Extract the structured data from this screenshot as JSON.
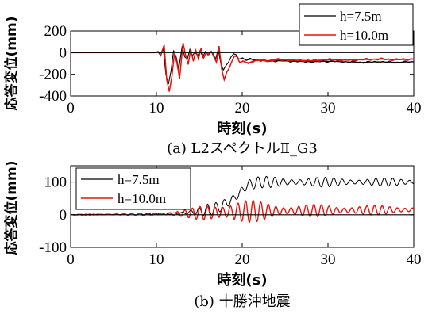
{
  "chart_data": [
    {
      "type": "line",
      "panel_caption": "(a)  L2スペクトルⅡ_G3",
      "xlabel": "時刻(s)",
      "ylabel": "応答変位(mm)",
      "xlim": [
        0,
        40
      ],
      "ylim": [
        -400,
        200
      ],
      "x_ticks": [
        "0",
        "10",
        "20",
        "30",
        "40"
      ],
      "y_ticks": [
        "200",
        "0",
        "-200",
        "-400"
      ],
      "legend_position": "top-right",
      "grid": false,
      "series": [
        {
          "name": "h=7.5m",
          "color": "#000000",
          "points": [
            [
              0,
              0
            ],
            [
              9.8,
              0
            ],
            [
              10.2,
              5
            ],
            [
              10.5,
              -30
            ],
            [
              10.8,
              40
            ],
            [
              11.1,
              -200
            ],
            [
              11.4,
              -290
            ],
            [
              11.7,
              -170
            ],
            [
              12.0,
              20
            ],
            [
              12.3,
              -40
            ],
            [
              12.6,
              -150
            ],
            [
              13.0,
              60
            ],
            [
              13.3,
              -40
            ],
            [
              13.6,
              -60
            ],
            [
              13.9,
              30
            ],
            [
              14.2,
              -30
            ],
            [
              14.5,
              10
            ],
            [
              14.8,
              -30
            ],
            [
              15.1,
              20
            ],
            [
              15.4,
              -40
            ],
            [
              15.7,
              10
            ],
            [
              16.0,
              -20
            ],
            [
              16.3,
              10
            ],
            [
              16.6,
              -10
            ],
            [
              16.9,
              -60
            ],
            [
              17.2,
              30
            ],
            [
              17.5,
              -100
            ],
            [
              17.8,
              -160
            ],
            [
              18.1,
              -120
            ],
            [
              18.4,
              -90
            ],
            [
              18.7,
              -40
            ],
            [
              19.0,
              -10
            ],
            [
              19.3,
              -20
            ],
            [
              19.6,
              -60
            ],
            [
              20.0,
              -50
            ],
            [
              20.5,
              -70
            ],
            [
              21.0,
              -60
            ],
            [
              22,
              -70
            ],
            [
              23,
              -80
            ],
            [
              24,
              -75
            ],
            [
              26,
              -80
            ],
            [
              28,
              -85
            ],
            [
              30,
              -80
            ],
            [
              32,
              -85
            ],
            [
              34,
              -90
            ],
            [
              36,
              -85
            ],
            [
              38,
              -90
            ],
            [
              40,
              -85
            ]
          ]
        },
        {
          "name": "h=10.0m",
          "color": "#e8120c",
          "points": [
            [
              0,
              0
            ],
            [
              9.8,
              0
            ],
            [
              10.2,
              10
            ],
            [
              10.5,
              -20
            ],
            [
              10.9,
              70
            ],
            [
              11.2,
              -250
            ],
            [
              11.5,
              -360
            ],
            [
              11.8,
              -220
            ],
            [
              12.1,
              -10
            ],
            [
              12.4,
              -100
            ],
            [
              12.7,
              -240
            ],
            [
              13.1,
              90
            ],
            [
              13.4,
              -20
            ],
            [
              13.7,
              -110
            ],
            [
              14.0,
              30
            ],
            [
              14.3,
              -80
            ],
            [
              14.6,
              20
            ],
            [
              14.9,
              -60
            ],
            [
              15.2,
              40
            ],
            [
              15.5,
              -50
            ],
            [
              15.8,
              0
            ],
            [
              16.1,
              -20
            ],
            [
              16.4,
              10
            ],
            [
              16.7,
              -40
            ],
            [
              17.0,
              -90
            ],
            [
              17.3,
              60
            ],
            [
              17.6,
              -150
            ],
            [
              17.9,
              -250
            ],
            [
              18.2,
              -180
            ],
            [
              18.5,
              -140
            ],
            [
              18.8,
              -80
            ],
            [
              19.1,
              -30
            ],
            [
              19.4,
              -40
            ],
            [
              19.7,
              -90
            ],
            [
              20.2,
              -80
            ],
            [
              20.7,
              -100
            ],
            [
              21.2,
              -80
            ],
            [
              22,
              -70
            ],
            [
              23,
              -75
            ],
            [
              24,
              -65
            ],
            [
              26,
              -70
            ],
            [
              28,
              -75
            ],
            [
              30,
              -65
            ],
            [
              32,
              -70
            ],
            [
              34,
              -65
            ],
            [
              36,
              -60
            ],
            [
              38,
              -65
            ],
            [
              40,
              -60
            ]
          ]
        }
      ]
    },
    {
      "type": "line",
      "panel_caption": "(b)  十勝沖地震",
      "xlabel": "時刻(s)",
      "ylabel": "応答変位(mm)",
      "xlim": [
        0,
        40
      ],
      "ylim": [
        -100,
        150
      ],
      "x_ticks": [
        "0",
        "10",
        "20",
        "30",
        "40"
      ],
      "y_ticks": [
        "100",
        "0",
        "-100"
      ],
      "legend_position": "top-left",
      "grid": false,
      "series": [
        {
          "name": "h=7.5m",
          "color": "#000000",
          "trend": [
            [
              0,
              0
            ],
            [
              10,
              2
            ],
            [
              13,
              5
            ],
            [
              15,
              10
            ],
            [
              17,
              20
            ],
            [
              18.5,
              40
            ],
            [
              19.5,
              60
            ],
            [
              20.5,
              90
            ],
            [
              22,
              100
            ],
            [
              40,
              100
            ]
          ],
          "amplitude": [
            [
              0,
              1
            ],
            [
              10,
              3
            ],
            [
              14,
              8
            ],
            [
              16,
              18
            ],
            [
              18,
              25
            ],
            [
              20,
              25
            ],
            [
              22,
              18
            ],
            [
              30,
              15
            ],
            [
              40,
              12
            ]
          ]
        },
        {
          "name": "h=10.0m",
          "color": "#e8120c",
          "trend": [
            [
              0,
              0
            ],
            [
              10,
              2
            ],
            [
              15,
              5
            ],
            [
              20,
              10
            ],
            [
              25,
              12
            ],
            [
              40,
              15
            ]
          ],
          "amplitude": [
            [
              0,
              1
            ],
            [
              10,
              4
            ],
            [
              14,
              15
            ],
            [
              17,
              30
            ],
            [
              19,
              45
            ],
            [
              20,
              40
            ],
            [
              22,
              30
            ],
            [
              25,
              22
            ],
            [
              30,
              18
            ],
            [
              40,
              12
            ]
          ]
        }
      ]
    }
  ]
}
